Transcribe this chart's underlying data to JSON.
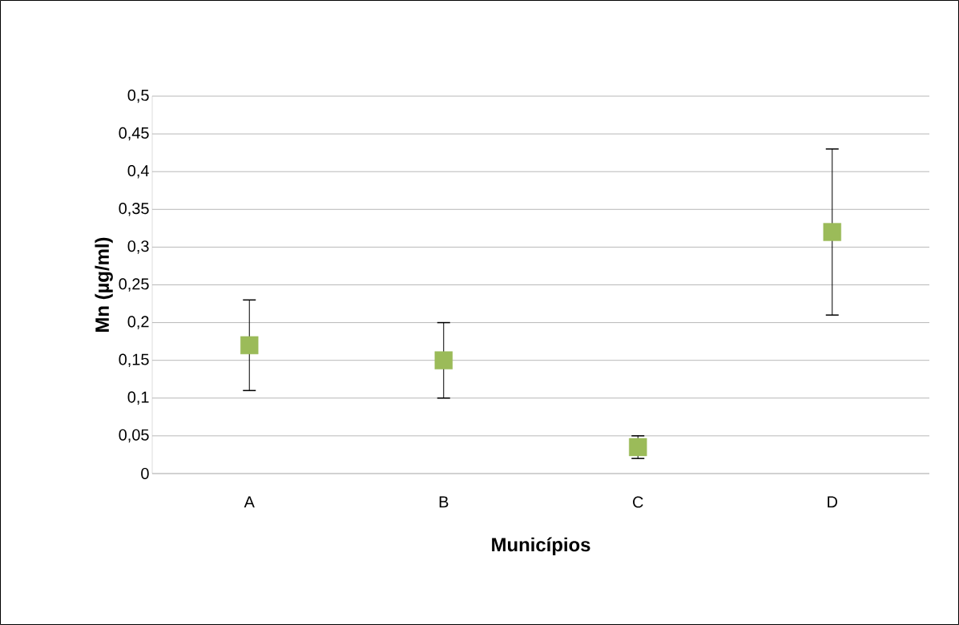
{
  "chart_data": {
    "type": "scatter",
    "xlabel": "Municípios",
    "ylabel": "Mn (µg/ml)",
    "categories": [
      "A",
      "B",
      "C",
      "D"
    ],
    "series": [
      {
        "color": "#9bbb59",
        "marker": "square",
        "values": [
          0.17,
          0.15,
          0.035,
          0.32
        ],
        "errors": [
          [
            0.11,
            0.23
          ],
          [
            0.1,
            0.2
          ],
          [
            0.02,
            0.05
          ],
          [
            0.21,
            0.43
          ]
        ]
      }
    ],
    "ylim": [
      0,
      0.5
    ],
    "yticks": [
      {
        "value": 0,
        "label": "0"
      },
      {
        "value": 0.05,
        "label": "0,05"
      },
      {
        "value": 0.1,
        "label": "0,1"
      },
      {
        "value": 0.15,
        "label": "0,15"
      },
      {
        "value": 0.2,
        "label": "0,2"
      },
      {
        "value": 0.25,
        "label": "0,25"
      },
      {
        "value": 0.3,
        "label": "0,3"
      },
      {
        "value": 0.35,
        "label": "0,35"
      },
      {
        "value": 0.4,
        "label": "0,4"
      },
      {
        "value": 0.45,
        "label": "0,45"
      },
      {
        "value": 0.5,
        "label": "0,5"
      }
    ],
    "grid": "y"
  }
}
